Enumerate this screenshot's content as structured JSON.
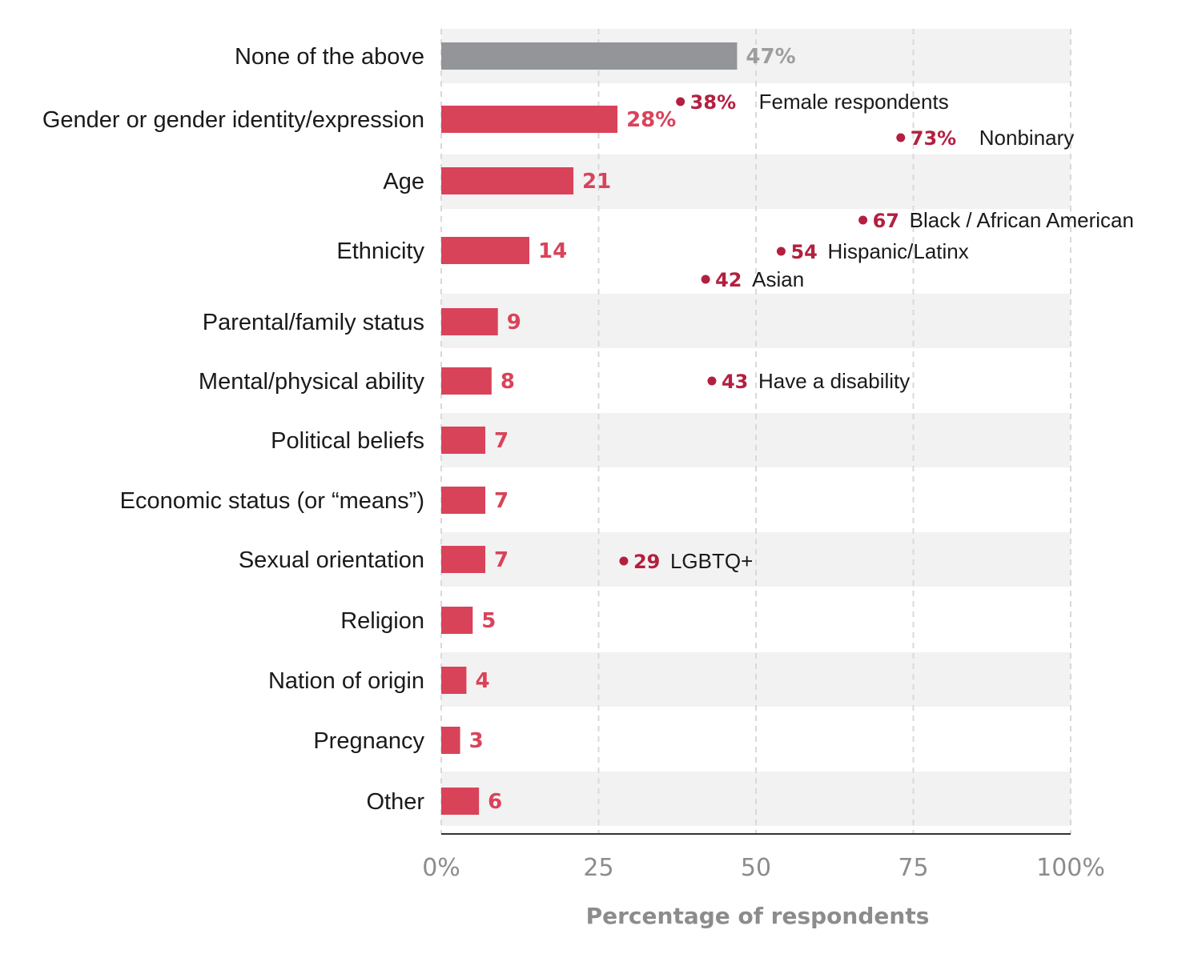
{
  "chart_data": {
    "type": "bar",
    "orientation": "horizontal",
    "xlabel": "Percentage of respondents",
    "xlim": [
      0,
      100
    ],
    "xticks": [
      0,
      25,
      50,
      75,
      100
    ],
    "xtick_labels": [
      "0%",
      "25",
      "50",
      "75",
      "100%"
    ],
    "grid": true,
    "categories": [
      "None of the above",
      "Gender or gender identity/expression",
      "Age",
      "Ethnicity",
      "Parental/family status",
      "Mental/physical ability",
      "Political beliefs",
      "Economic status (or “means”)",
      "Sexual orientation",
      "Religion",
      "Nation of origin",
      "Pregnancy",
      "Other"
    ],
    "values": [
      47,
      28,
      21,
      14,
      9,
      8,
      7,
      7,
      7,
      5,
      4,
      3,
      6
    ],
    "value_labels": [
      "47%",
      "28%",
      "21",
      "14",
      "9",
      "8",
      "7",
      "7",
      "7",
      "5",
      "4",
      "3",
      "6"
    ],
    "bar_colors": [
      "#939598",
      "#d9435a",
      "#d9435a",
      "#d9435a",
      "#d9435a",
      "#d9435a",
      "#d9435a",
      "#d9435a",
      "#d9435a",
      "#d9435a",
      "#d9435a",
      "#d9435a",
      "#d9435a"
    ],
    "label_colors": [
      "#9d9d9d",
      "#d9435a",
      "#d9435a",
      "#d9435a",
      "#d9435a",
      "#d9435a",
      "#d9435a",
      "#d9435a",
      "#d9435a",
      "#d9435a",
      "#d9435a",
      "#d9435a",
      "#d9435a"
    ],
    "annotations": [
      {
        "category": "Gender or gender identity/expression",
        "value": 38,
        "value_label": "38%",
        "label": "Female respondents"
      },
      {
        "category": "Gender or gender identity/expression",
        "value": 73,
        "value_label": "73%",
        "label": "Nonbinary"
      },
      {
        "category": "Ethnicity",
        "value": 67,
        "value_label": "67",
        "label": "Black / African American"
      },
      {
        "category": "Ethnicity",
        "value": 54,
        "value_label": "54",
        "label": "Hispanic/Latinx"
      },
      {
        "category": "Ethnicity",
        "value": 42,
        "value_label": "42",
        "label": "Asian"
      },
      {
        "category": "Mental/physical ability",
        "value": 43,
        "value_label": "43",
        "label": "Have a disability"
      },
      {
        "category": "Sexual orientation",
        "value": 29,
        "value_label": "29",
        "label": "LGBTQ+"
      }
    ],
    "colors": {
      "bar": "#d9435a",
      "neutral_bar": "#939598",
      "annotation": "#b3203f",
      "band": "#f2f2f2",
      "grid": "#d9d9d9"
    }
  }
}
